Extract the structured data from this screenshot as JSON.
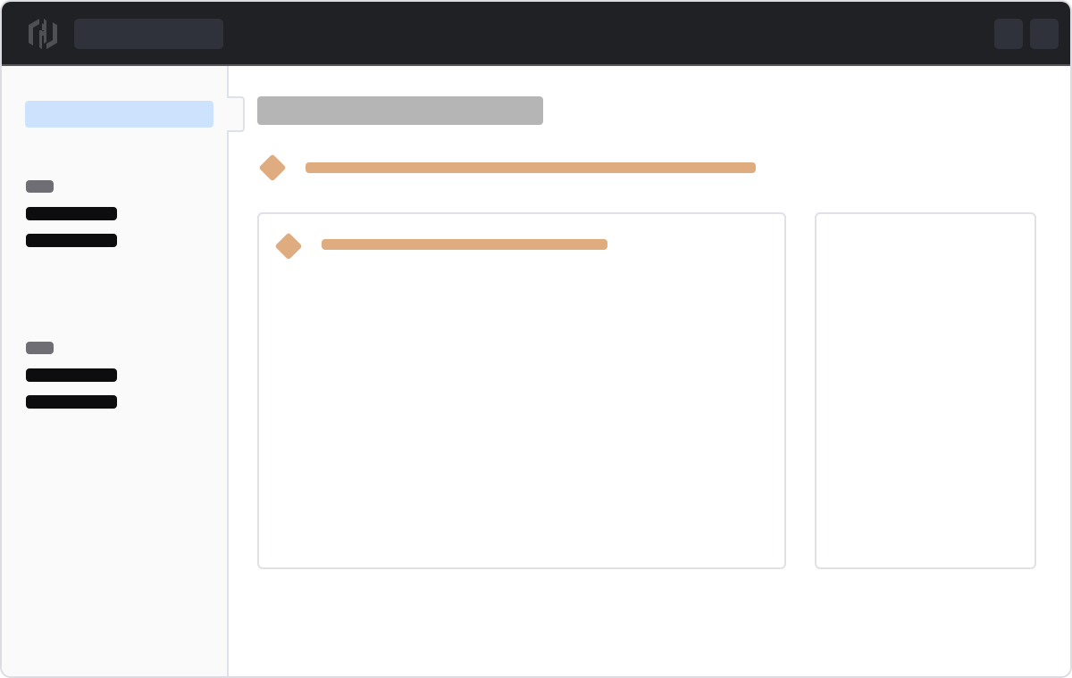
{
  "header": {
    "logo_icon": "hashicorp-logo-icon",
    "background": "#202125",
    "placeholder_color": "#2f323a"
  },
  "sidebar": {
    "background": "#fafafa",
    "active_item_color": "#cde3fd",
    "groups": [
      {
        "caption_color": "#6e6e74",
        "items": 2
      },
      {
        "caption_color": "#6e6e74",
        "items": 2
      }
    ]
  },
  "main": {
    "title_placeholder_color": "#b5b5b5",
    "accent_color": "#dfac80",
    "cards": 2
  }
}
